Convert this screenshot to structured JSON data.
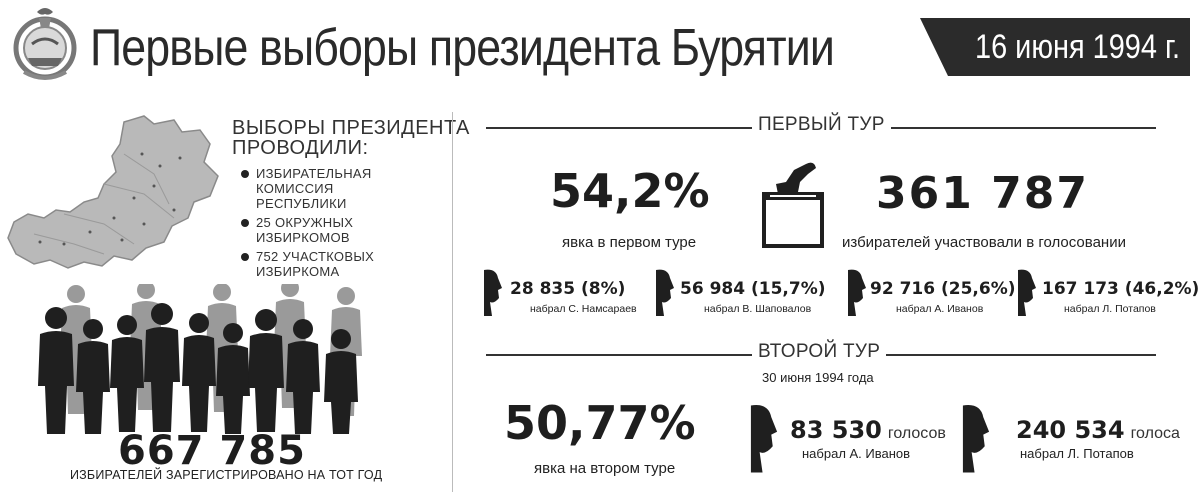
{
  "header": {
    "title": "Первые выборы президента Бурятии",
    "date": "16 июня 1994 г."
  },
  "organizers": {
    "title_line1": "ВЫБОРЫ ПРЕЗИДЕНТА",
    "title_line2": "ПРОВОДИЛИ:",
    "items": [
      "ИЗБИРАТЕЛЬНАЯ КОМИССИЯ РЕСПУБЛИКИ",
      "25 ОКРУЖНЫХ ИЗБИРКОМОВ",
      "752 УЧАСТКОВЫХ ИЗБИРКОМА"
    ]
  },
  "registered": {
    "value": "667 785",
    "caption": "ИЗБИРАТЕЛЕЙ ЗАРЕГИСТРИРОВАНО НА ТОТ ГОД"
  },
  "round1": {
    "label": "ПЕРВЫЙ ТУР",
    "turnout": "54,2%",
    "turnout_caption": "явка в первом туре",
    "voters": "361 787",
    "voters_caption": "избирателей участвовали в голосовании",
    "candidates": [
      {
        "votes": "28 835 (8%)",
        "name": "набрал С. Намсараев"
      },
      {
        "votes": "56 984 (15,7%)",
        "name": "набрал В. Шаповалов"
      },
      {
        "votes": "92 716 (25,6%)",
        "name": "набрал А. Иванов"
      },
      {
        "votes": "167 173 (46,2%)",
        "name": "набрал Л. Потапов"
      }
    ]
  },
  "round2": {
    "label": "ВТОРОЙ ТУР",
    "date": "30 июня 1994 года",
    "turnout": "50,77%",
    "turnout_caption": "явка на втором туре",
    "candidates": [
      {
        "votes": "83 530",
        "unit": "голосов",
        "name": "набрал А. Иванов"
      },
      {
        "votes": "240 534",
        "unit": "голоса",
        "name": "набрал Л. Потапов"
      }
    ]
  },
  "icons": {
    "emblem": "buryatia-emblem-icon",
    "map": "buryatia-map-icon",
    "crowd": "people-crowd-icon",
    "ballot": "ballot-box-icon",
    "profile": "head-profile-icon"
  }
}
